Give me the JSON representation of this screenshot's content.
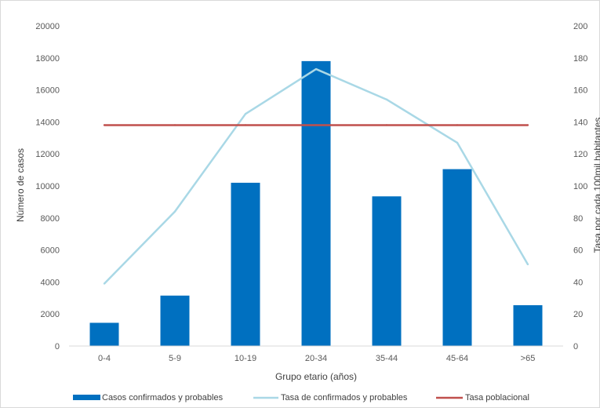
{
  "chart_data": {
    "type": "bar",
    "categories": [
      "0-4",
      "5-9",
      "10-19",
      "20-34",
      "35-44",
      "45-64",
      ">65"
    ],
    "series": [
      {
        "name": "Casos confirmados y probables",
        "type": "bar",
        "axis": "left",
        "color": "#0070C0",
        "values": [
          1450,
          3150,
          10200,
          17800,
          9350,
          11050,
          2550
        ]
      },
      {
        "name": "Tasa de confirmados y probables",
        "type": "line",
        "axis": "right",
        "color": "#A9D8E6",
        "values": [
          39,
          84,
          145,
          173,
          154,
          127,
          51
        ]
      },
      {
        "name": "Tasa poblacional",
        "type": "line",
        "axis": "right",
        "color": "#C0504D",
        "values": [
          138,
          138,
          138,
          138,
          138,
          138,
          138
        ]
      }
    ],
    "xlabel": "Grupo etario (años)",
    "ylabel": "Número de casos",
    "y2label": "Tasa por cada 100mil habitantes",
    "ylim": [
      0,
      20000
    ],
    "y2lim": [
      0,
      200
    ],
    "yticks": [
      "0",
      "2000",
      "4000",
      "6000",
      "8000",
      "10000",
      "12000",
      "14000",
      "16000",
      "18000",
      "20000"
    ],
    "y2ticks": [
      "0",
      "20",
      "40",
      "60",
      "80",
      "100",
      "120",
      "140",
      "160",
      "180",
      "200"
    ],
    "grid": false,
    "legend_position": "bottom"
  }
}
